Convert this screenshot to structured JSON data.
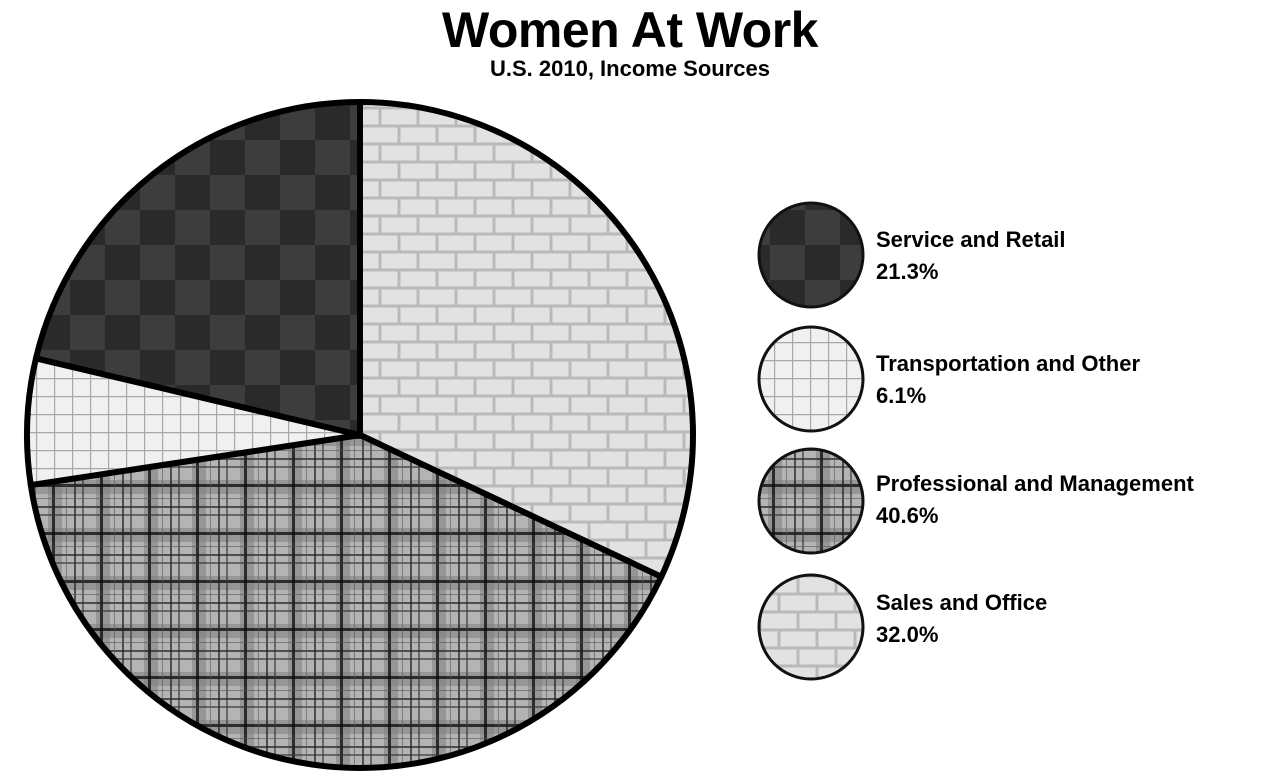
{
  "chart_data": {
    "type": "pie",
    "title": "Women At Work",
    "subtitle": "U.S. 2010, Income Sources",
    "categories": [
      "Service and Retail",
      "Transportation and Other",
      "Professional and Management",
      "Sales and Office"
    ],
    "values": [
      21.3,
      6.1,
      40.6,
      32.0
    ],
    "value_labels": [
      "21.3%",
      "6.1%",
      "40.6%",
      "32.0%"
    ],
    "patterns": [
      "checkerboard",
      "grid",
      "plaid",
      "brick"
    ],
    "colors": [
      "#3a3a3a",
      "#f0f0f0",
      "#9a9a9a",
      "#e3e3e3"
    ],
    "legend": "right",
    "slice_order": "Sales and Office clockwise from 12 o'clock, then Professional and Management, Transportation and Other, Service and Retail"
  }
}
